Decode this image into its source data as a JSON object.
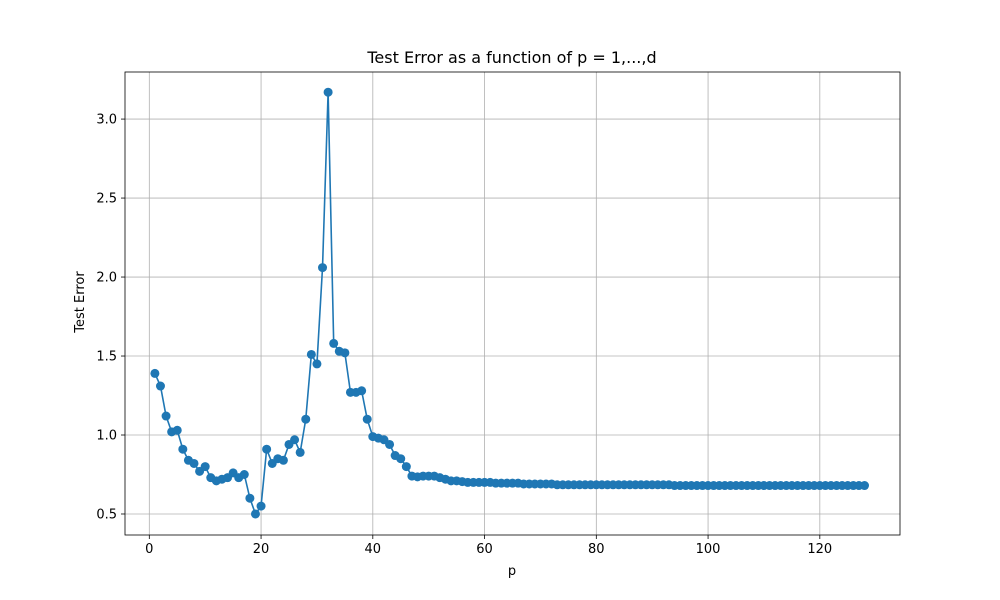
{
  "chart_data": {
    "type": "line",
    "title": "Test Error as a function of p = 1,...,d",
    "xlabel": "p",
    "ylabel": "Test Error",
    "xlim": [
      -4.35,
      134.35
    ],
    "ylim": [
      0.367,
      3.298
    ],
    "xticks": [
      0,
      20,
      40,
      60,
      80,
      100,
      120
    ],
    "xtick_labels": [
      "0",
      "20",
      "40",
      "60",
      "80",
      "100",
      "120"
    ],
    "yticks": [
      0.5,
      1.0,
      1.5,
      2.0,
      2.5,
      3.0
    ],
    "ytick_labels": [
      "0.5",
      "1.0",
      "1.5",
      "2.0",
      "2.5",
      "3.0"
    ],
    "grid": true,
    "marker": "circle",
    "color": "#1f77b4",
    "series": [
      {
        "x": [
          1,
          2,
          3,
          4,
          5,
          6,
          7,
          8,
          9,
          10,
          11,
          12,
          13,
          14,
          15,
          16,
          17,
          18,
          19,
          20,
          21,
          22,
          23,
          24,
          25,
          26,
          27,
          28,
          29,
          30,
          31,
          32,
          33,
          34,
          35,
          36,
          37,
          38,
          39,
          40,
          41,
          42,
          43,
          44,
          45,
          46,
          47,
          48,
          49,
          50,
          51,
          52,
          53,
          54,
          55,
          56,
          57,
          58,
          59,
          60,
          61,
          62,
          63,
          64,
          65,
          66,
          67,
          68,
          69,
          70,
          71,
          72,
          73,
          74,
          75,
          76,
          77,
          78,
          79,
          80,
          81,
          82,
          83,
          84,
          85,
          86,
          87,
          88,
          89,
          90,
          91,
          92,
          93,
          94,
          95,
          96,
          97,
          98,
          99,
          100,
          101,
          102,
          103,
          104,
          105,
          106,
          107,
          108,
          109,
          110,
          111,
          112,
          113,
          114,
          115,
          116,
          117,
          118,
          119,
          120,
          121,
          122,
          123,
          124,
          125,
          126,
          127,
          128
        ],
        "y": [
          1.39,
          1.31,
          1.12,
          1.02,
          1.03,
          0.91,
          0.84,
          0.82,
          0.77,
          0.8,
          0.73,
          0.71,
          0.72,
          0.73,
          0.76,
          0.73,
          0.75,
          0.6,
          0.5,
          0.55,
          0.91,
          0.82,
          0.85,
          0.84,
          0.94,
          0.97,
          0.89,
          1.1,
          1.51,
          1.45,
          2.06,
          3.17,
          1.58,
          1.53,
          1.52,
          1.27,
          1.27,
          1.28,
          1.1,
          0.99,
          0.98,
          0.97,
          0.94,
          0.87,
          0.85,
          0.8,
          0.74,
          0.735,
          0.74,
          0.74,
          0.74,
          0.73,
          0.72,
          0.71,
          0.71,
          0.705,
          0.7,
          0.7,
          0.7,
          0.7,
          0.7,
          0.695,
          0.695,
          0.695,
          0.695,
          0.695,
          0.69,
          0.69,
          0.69,
          0.69,
          0.69,
          0.69,
          0.685,
          0.685,
          0.685,
          0.685,
          0.685,
          0.685,
          0.685,
          0.685,
          0.685,
          0.685,
          0.685,
          0.685,
          0.685,
          0.685,
          0.685,
          0.685,
          0.685,
          0.685,
          0.685,
          0.685,
          0.685,
          0.68,
          0.68,
          0.68,
          0.68,
          0.68,
          0.68,
          0.68,
          0.68,
          0.68,
          0.68,
          0.68,
          0.68,
          0.68,
          0.68,
          0.68,
          0.68,
          0.68,
          0.68,
          0.68,
          0.68,
          0.68,
          0.68,
          0.68,
          0.68,
          0.68,
          0.68,
          0.68,
          0.68,
          0.68,
          0.68,
          0.68,
          0.68,
          0.68,
          0.68,
          0.68
        ]
      }
    ]
  }
}
